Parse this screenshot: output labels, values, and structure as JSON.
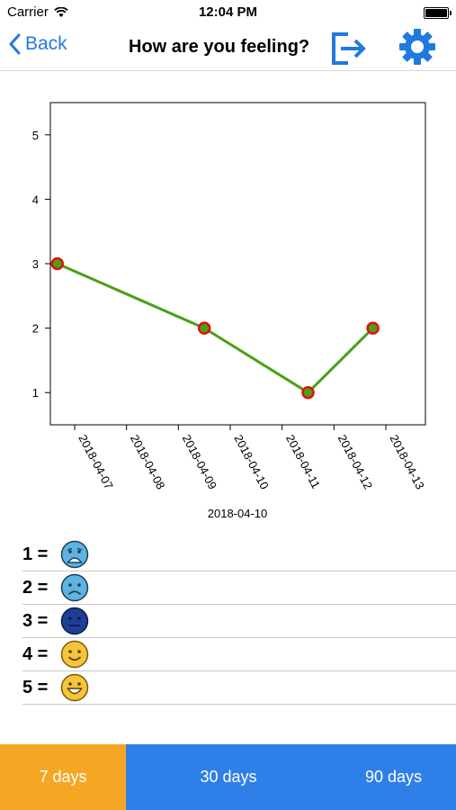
{
  "status_bar": {
    "carrier": "Carrier",
    "time": "12:04 PM"
  },
  "nav": {
    "back_label": "Back",
    "title": "How are you feeling?"
  },
  "chart_data": {
    "type": "line",
    "x_ticks": [
      "2018-04-07",
      "2018-04-08",
      "2018-04-09",
      "2018-04-10",
      "2018-04-11",
      "2018-04-12",
      "2018-04-13"
    ],
    "xlabel": "2018-04-10",
    "ylabel": "",
    "y_ticks": [
      1,
      2,
      3,
      4,
      5
    ],
    "ylim": [
      0.5,
      5.5
    ],
    "grid": false,
    "series": [
      {
        "x": [
          "2018-04-06 16:00",
          "2018-04-09 12:00",
          "2018-04-11 12:00",
          "2018-04-12 18:00"
        ],
        "y": [
          3,
          2,
          1,
          2
        ],
        "line_color": "#4aa017",
        "marker_color": "#e01010"
      }
    ]
  },
  "legend": [
    {
      "label": "1 =",
      "icon": "very-sad-face-icon"
    },
    {
      "label": "2 =",
      "icon": "sad-face-icon"
    },
    {
      "label": "3 =",
      "icon": "neutral-face-icon"
    },
    {
      "label": "4 =",
      "icon": "smile-face-icon"
    },
    {
      "label": "5 =",
      "icon": "big-smile-face-icon"
    }
  ],
  "tabs": [
    {
      "label": "7 days",
      "active": true
    },
    {
      "label": "30 days",
      "active": false
    },
    {
      "label": "90 days",
      "active": false
    }
  ],
  "colors": {
    "accent": "#1f7ae0",
    "tabbar": "#2f7fe8",
    "tab_active": "#f5a623"
  }
}
